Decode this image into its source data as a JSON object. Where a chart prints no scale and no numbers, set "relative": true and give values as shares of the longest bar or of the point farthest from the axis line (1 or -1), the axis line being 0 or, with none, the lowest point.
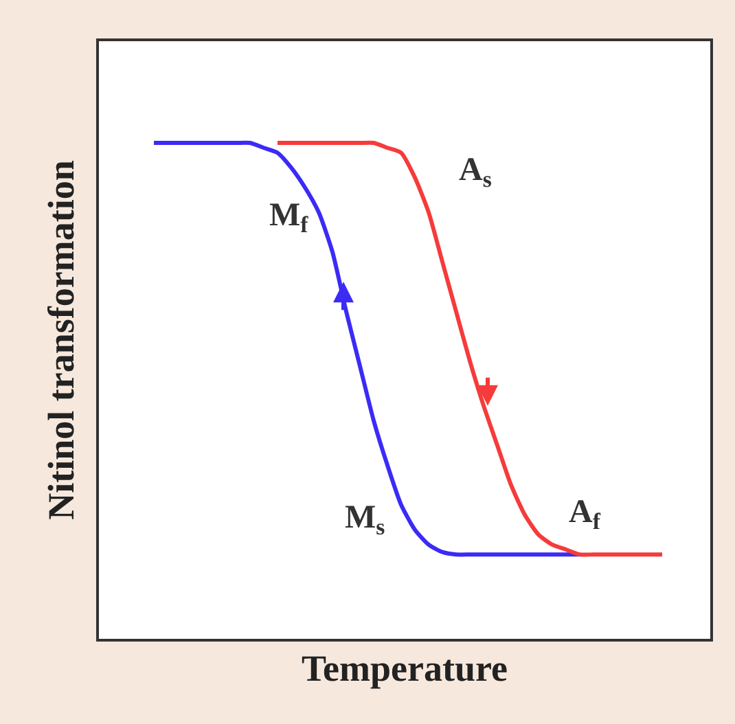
{
  "chart_data": {
    "type": "line",
    "relative": true,
    "xlabel": "Temperature",
    "ylabel": "Nitinol transformation",
    "categories": [
      null,
      null,
      null,
      null,
      null,
      null,
      null,
      null,
      null,
      null,
      null,
      null,
      null,
      null,
      null,
      null,
      null,
      null,
      null,
      null,
      null,
      null,
      null,
      null,
      null,
      null,
      null,
      null,
      null,
      null,
      null,
      null,
      null,
      null,
      null,
      null,
      null,
      null
    ],
    "series": [
      {
        "color": "#3b2bf5",
        "values": [
          1,
          1,
          1,
          1,
          1,
          1,
          1,
          1,
          0.99,
          0.98,
          0.95,
          0.91,
          0.86,
          0.78,
          0.66,
          0.55,
          0.44,
          0.35,
          0.27,
          0.22,
          0.19,
          0.175,
          0.17,
          0.17,
          0.17,
          0.17,
          0.17,
          0.17,
          0.17,
          0.17,
          0.17,
          0.17,
          null,
          null,
          null,
          null,
          null,
          null
        ]
      },
      {
        "color": "#f53b3b",
        "values": [
          null,
          null,
          null,
          null,
          null,
          null,
          null,
          null,
          null,
          1,
          1,
          1,
          1,
          1,
          1,
          1,
          1,
          0.99,
          0.98,
          0.93,
          0.86,
          0.76,
          0.66,
          0.56,
          0.47,
          0.39,
          0.31,
          0.25,
          0.21,
          0.19,
          0.18,
          0.17,
          0.17,
          0.17,
          0.17,
          0.17,
          0.17,
          0.17
        ]
      }
    ],
    "annotations": [
      "M$_{f}$",
      "M$_{s}$",
      "A$_{s}$",
      "A$_{f}$"
    ],
    "marker": "none",
    "line_style": "solid"
  }
}
